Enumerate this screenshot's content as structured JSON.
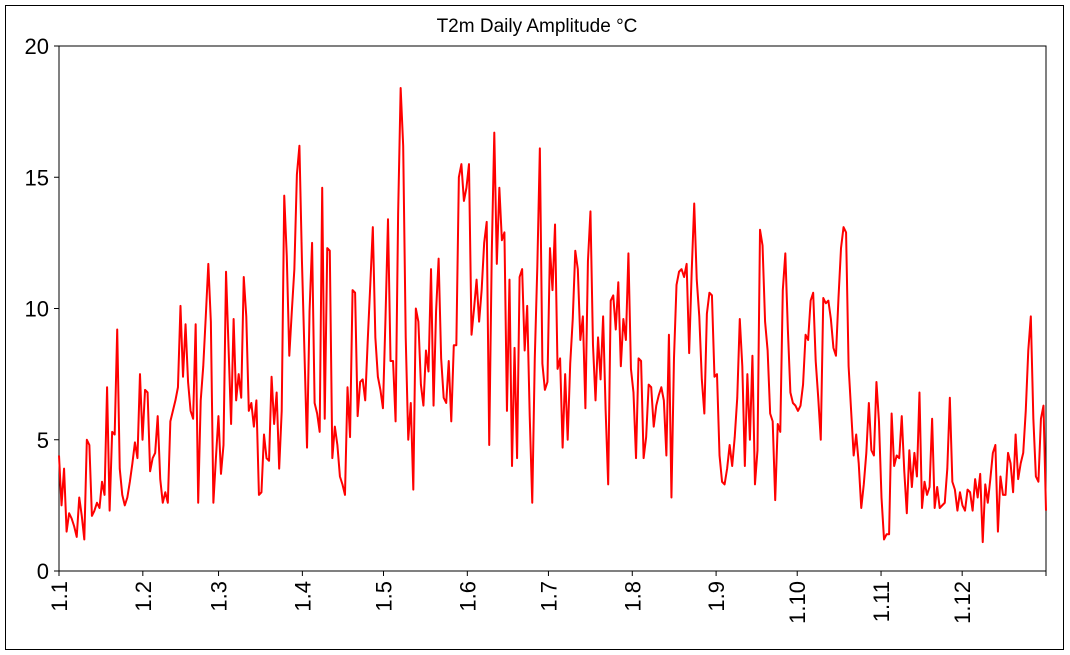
{
  "chart_data": {
    "type": "line",
    "title": "T2m Daily Amplitude °C",
    "xlabel": "",
    "ylabel": "",
    "ylim": [
      0,
      20
    ],
    "yticks": [
      "0",
      "5",
      "10",
      "15",
      "20"
    ],
    "xtick_labels": [
      "1.1",
      "1.2",
      "1.3",
      "1.4",
      "1.5",
      "1.6",
      "1.7",
      "1.8",
      "1.9",
      "1.10",
      "1.11",
      "1.12"
    ],
    "grid": false,
    "legend": "none",
    "series": [
      {
        "color": "#ff0000",
        "values": [
          4.4,
          2.5,
          3.9,
          1.5,
          2.2,
          2.0,
          1.7,
          1.3,
          2.8,
          2.1,
          1.2,
          5.0,
          4.8,
          2.1,
          2.3,
          2.6,
          2.4,
          3.4,
          2.9,
          7.0,
          2.3,
          5.3,
          5.2,
          9.2,
          3.9,
          2.9,
          2.5,
          2.8,
          3.4,
          4.1,
          4.9,
          4.3,
          7.5,
          5.0,
          6.9,
          6.8,
          3.8,
          4.3,
          4.5,
          5.9,
          3.5,
          2.6,
          3.0,
          2.6,
          5.7,
          6.1,
          6.5,
          7.0,
          10.1,
          7.4,
          9.4,
          7.2,
          6.1,
          5.8,
          9.4,
          2.6,
          6.5,
          7.8,
          9.7,
          11.7,
          9.5,
          2.6,
          4.3,
          5.9,
          3.7,
          4.8,
          11.4,
          8.5,
          5.6,
          9.6,
          6.5,
          7.5,
          6.6,
          11.2,
          9.7,
          6.1,
          6.4,
          5.5,
          6.5,
          2.9,
          3.0,
          5.2,
          4.3,
          4.2,
          7.4,
          5.6,
          6.8,
          3.9,
          6.1,
          14.3,
          12.0,
          8.2,
          9.9,
          11.5,
          15.1,
          16.2,
          11.8,
          8.3,
          4.7,
          9.9,
          12.5,
          6.4,
          6.0,
          5.3,
          14.6,
          5.8,
          12.3,
          12.2,
          4.3,
          5.5,
          4.8,
          3.6,
          3.3,
          2.9,
          7.0,
          5.1,
          10.7,
          10.6,
          5.9,
          7.2,
          7.3,
          6.5,
          8.8,
          10.9,
          13.1,
          8.9,
          7.4,
          6.9,
          6.2,
          9.6,
          13.4,
          8.0,
          8.0,
          5.7,
          13.6,
          18.4,
          16.2,
          8.9,
          5.0,
          6.4,
          3.1,
          10.0,
          9.5,
          7.1,
          6.3,
          8.4,
          7.6,
          11.5,
          6.3,
          9.9,
          11.9,
          8.1,
          6.6,
          6.4,
          8.0,
          5.7,
          8.6,
          8.6,
          15.0,
          15.5,
          14.1,
          14.6,
          15.5,
          9.0,
          10.0,
          11.1,
          9.5,
          10.7,
          12.5,
          13.3,
          4.8,
          12.1,
          16.7,
          11.7,
          14.6,
          12.6,
          12.9,
          6.1,
          11.1,
          4.0,
          8.5,
          4.3,
          11.2,
          11.5,
          8.4,
          10.1,
          5.9,
          2.6,
          8.1,
          11.6,
          16.1,
          7.9,
          6.9,
          7.2,
          12.3,
          10.7,
          13.2,
          7.7,
          8.1,
          4.7,
          7.5,
          5.0,
          7.9,
          9.6,
          12.2,
          11.5,
          8.8,
          9.7,
          6.2,
          11.8,
          13.7,
          8.6,
          6.5,
          8.9,
          7.3,
          9.7,
          6.1,
          3.3,
          10.3,
          10.5,
          9.2,
          11.0,
          7.8,
          9.6,
          8.8,
          12.1,
          7.7,
          6.8,
          4.3,
          8.1,
          8.0,
          4.3,
          5.1,
          7.1,
          7.0,
          5.5,
          6.3,
          6.7,
          7.0,
          6.5,
          4.4,
          9.0,
          2.8,
          8.1,
          10.9,
          11.4,
          11.5,
          11.2,
          11.7,
          8.3,
          11.4,
          14.0,
          11.1,
          9.7,
          7.3,
          6.0,
          9.8,
          10.6,
          10.5,
          7.4,
          7.5,
          4.4,
          3.4,
          3.3,
          3.9,
          4.8,
          4.0,
          5.1,
          6.6,
          9.6,
          7.8,
          4.0,
          7.5,
          5.0,
          8.2,
          3.3,
          4.6,
          13.0,
          12.4,
          9.5,
          8.4,
          6.0,
          5.7,
          2.7,
          5.6,
          5.3,
          10.7,
          12.1,
          9.2,
          6.8,
          6.4,
          6.3,
          6.1,
          6.3,
          7.1,
          9.0,
          8.8,
          10.3,
          10.6,
          8.0,
          6.6,
          5.0,
          10.4,
          10.2,
          10.3,
          9.6,
          8.5,
          8.2,
          10.4,
          12.3,
          13.1,
          12.9,
          7.8,
          6.1,
          4.4,
          5.2,
          4.1,
          2.4,
          3.3,
          4.5,
          6.4,
          4.6,
          4.4,
          7.2,
          5.7,
          2.8,
          1.2,
          1.4,
          1.4,
          6.0,
          4.0,
          4.4,
          4.3,
          5.9,
          3.8,
          2.2,
          4.6,
          3.2,
          4.5,
          3.6,
          6.8,
          2.4,
          3.4,
          2.9,
          3.2,
          5.8,
          2.4,
          3.2,
          2.4,
          2.5,
          2.6,
          3.9,
          6.6,
          3.4,
          3.1,
          2.3,
          3.0,
          2.5,
          2.3,
          3.1,
          3.0,
          2.3,
          3.5,
          2.8,
          3.7,
          1.1,
          3.3,
          2.6,
          3.5,
          4.5,
          4.8,
          1.5,
          3.6,
          2.9,
          2.9,
          4.5,
          4.1,
          3.0,
          5.2,
          3.5,
          4.1,
          4.5,
          6.1,
          8.4,
          9.7,
          5.8,
          3.6,
          3.4,
          5.8,
          6.3,
          2.3
        ]
      }
    ]
  }
}
